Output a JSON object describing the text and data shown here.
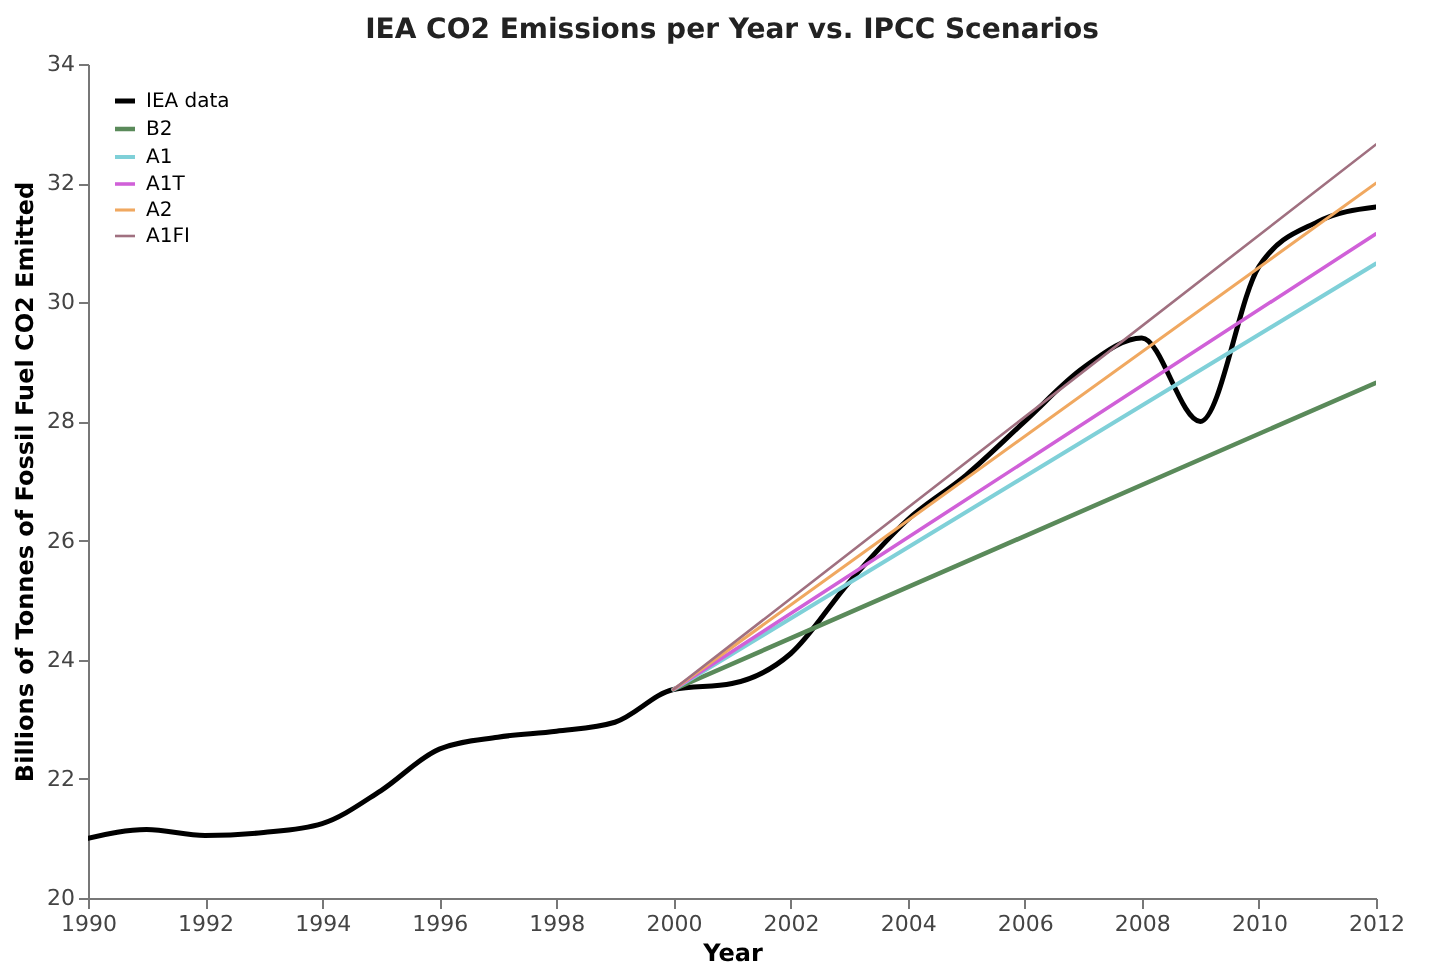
{
  "chart_data": {
    "type": "line",
    "title": "IEA CO2 Emissions per Year vs. IPCC Scenarios",
    "xlabel": "Year",
    "ylabel": "Billions of Tonnes of Fossil Fuel CO2 Emitted",
    "xlim": [
      1990,
      2012
    ],
    "xticks": [
      1990,
      1992,
      1994,
      1996,
      1998,
      2000,
      2002,
      2004,
      2006,
      2008,
      2010,
      2012
    ],
    "ylim": [
      20,
      34
    ],
    "yticks": [
      20,
      22,
      24,
      26,
      28,
      30,
      32,
      34
    ],
    "grid": false,
    "legend": "top left",
    "series": [
      {
        "name": "IEA data",
        "color": "#000000",
        "x": [
          1990,
          1991,
          1992,
          1993,
          1994,
          1995,
          1996,
          1997,
          1998,
          1999,
          2000,
          2001,
          2002,
          2003,
          2004,
          2005,
          2006,
          2007,
          2008,
          2009,
          2010,
          2011,
          2012
        ],
        "values": [
          21.0,
          21.15,
          21.05,
          21.1,
          21.25,
          21.8,
          22.5,
          22.7,
          22.8,
          22.95,
          23.5,
          23.6,
          24.1,
          25.3,
          26.35,
          27.1,
          28.0,
          28.9,
          29.4,
          28.0,
          30.6,
          31.35,
          31.6
        ]
      },
      {
        "name": "B2",
        "color": "#5a8a5a",
        "x": [
          2000,
          2012
        ],
        "values": [
          23.5,
          28.65
        ]
      },
      {
        "name": "A1",
        "color": "#7fd0d8",
        "x": [
          2000,
          2012
        ],
        "values": [
          23.5,
          30.65
        ]
      },
      {
        "name": "A1T",
        "color": "#d060d8",
        "x": [
          2000,
          2012
        ],
        "values": [
          23.5,
          31.15
        ]
      },
      {
        "name": "A2",
        "color": "#f0a860",
        "x": [
          2000,
          2012
        ],
        "values": [
          23.5,
          32.0
        ]
      },
      {
        "name": "A1FI",
        "color": "#a07080",
        "x": [
          2000,
          2012
        ],
        "values": [
          23.5,
          32.65
        ]
      }
    ]
  }
}
